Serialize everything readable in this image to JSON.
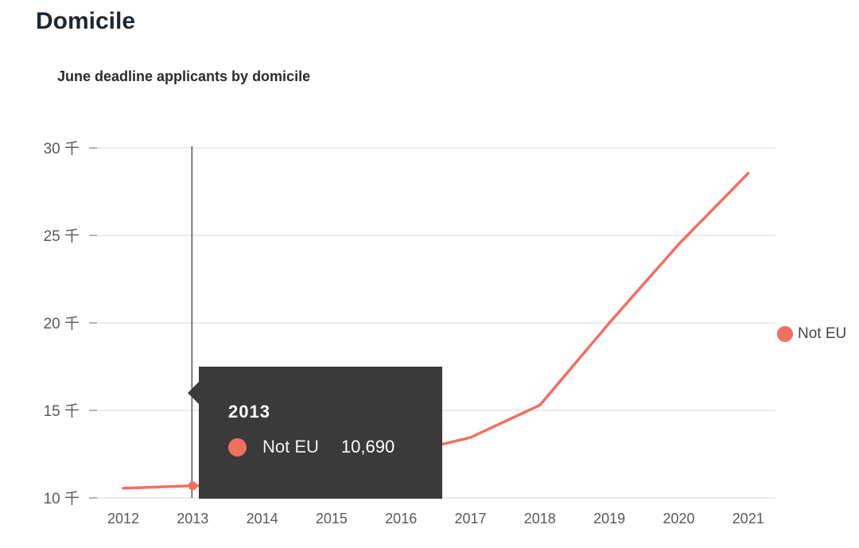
{
  "header": {
    "section_title": "Domicile"
  },
  "chart_data": {
    "type": "line",
    "title": "June deadline applicants by domicile",
    "x": [
      "2012",
      "2013",
      "2014",
      "2015",
      "2016",
      "2017",
      "2018",
      "2019",
      "2020",
      "2021"
    ],
    "series": [
      {
        "name": "Not EU",
        "color": "#f07060",
        "values": [
          10550,
          10690,
          10800,
          11500,
          12500,
          13450,
          15300,
          20000,
          24500,
          28550
        ]
      }
    ],
    "y_ticks": [
      {
        "value": 10000,
        "label": "10 千"
      },
      {
        "value": 15000,
        "label": "15 千"
      },
      {
        "value": 20000,
        "label": "20 千"
      },
      {
        "value": 25000,
        "label": "25 千"
      },
      {
        "value": 30000,
        "label": "30 千"
      }
    ],
    "ylim": [
      10000,
      30000
    ],
    "grid": true,
    "legend": "right"
  },
  "tooltip": {
    "year": "2013",
    "series": "Not EU",
    "value": "10,690",
    "index": 1
  }
}
